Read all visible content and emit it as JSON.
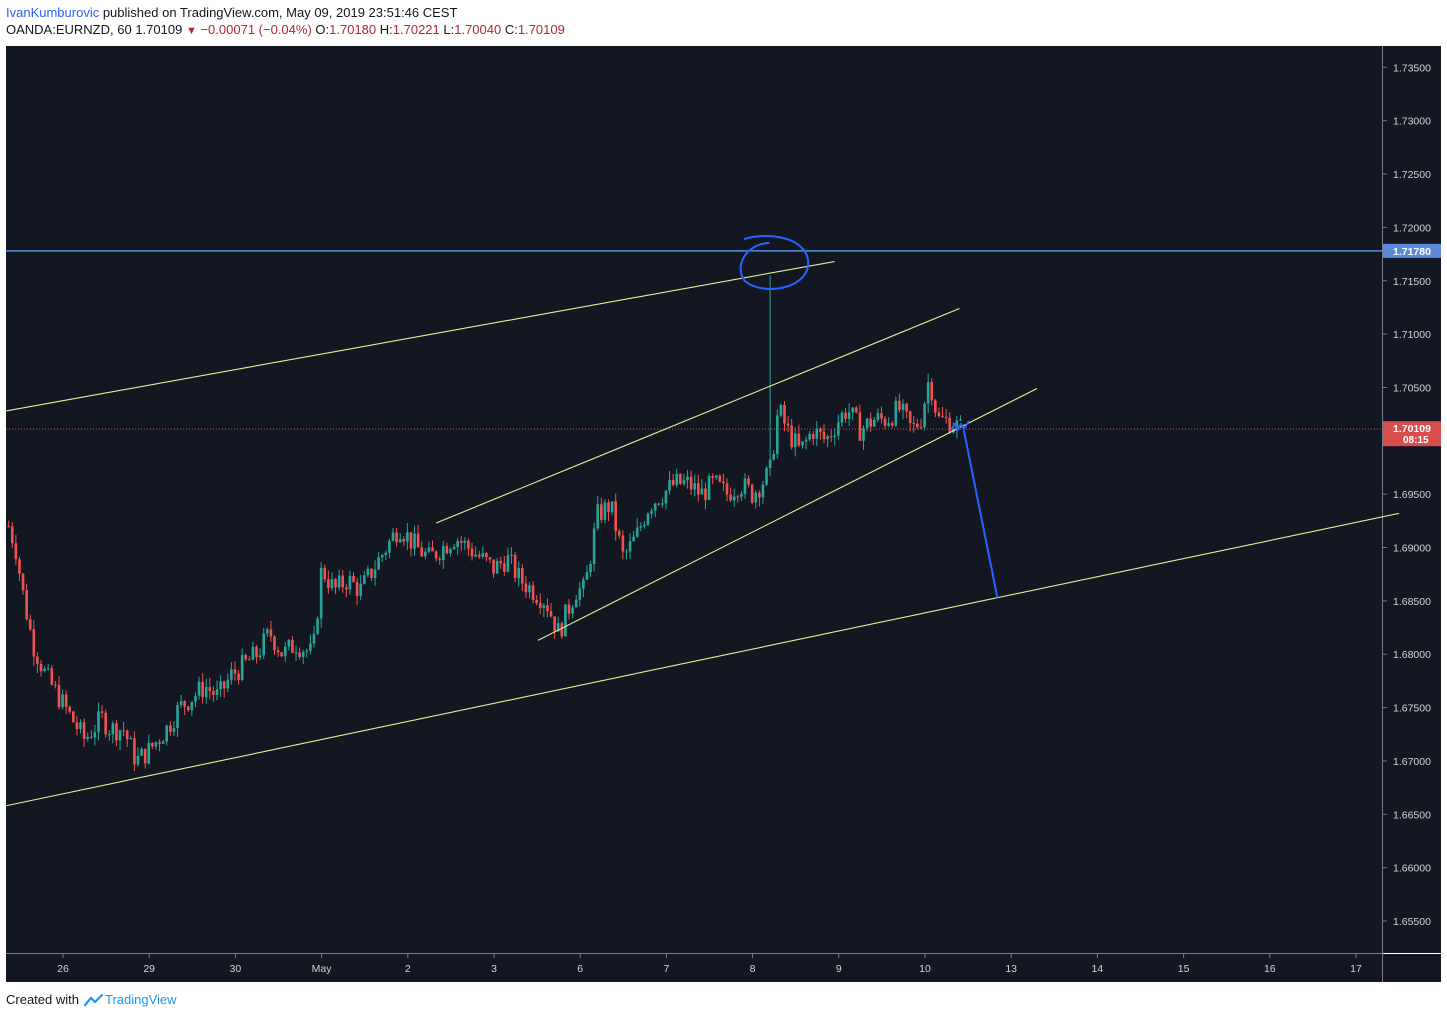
{
  "header": {
    "author": "IvanKumburovic",
    "published_text": " published on TradingView.com, May 09, 2019 23:51:46 CEST",
    "symbol": "OANDA:EURNZD, 60",
    "last": "1.70109",
    "change": "−0.00071 (−0.04%)",
    "o_label": "O:",
    "o_value": "1.70180",
    "h_label": "H:",
    "h_value": "1.70221",
    "l_label": "L:",
    "l_value": "1.70040",
    "c_label": "C:",
    "c_value": "1.70109"
  },
  "footer": {
    "created_with": "Created with",
    "brand": "TradingView"
  },
  "colors": {
    "background": "#131722",
    "up": "#26a69a",
    "down": "#ef5350",
    "trendline": "#e6ee9c",
    "drawing": "#2962ff",
    "resistance": "#5b8bd8",
    "last_price": "#d84d4d"
  },
  "chart_data": {
    "type": "candlestick",
    "symbol": "OANDA:EURNZD",
    "interval": "60",
    "ylim": [
      1.652,
      1.737
    ],
    "yticks": [
      "1.73500",
      "1.73000",
      "1.72500",
      "1.72000",
      "1.71500",
      "1.71000",
      "1.70500",
      "1.70000",
      "1.69500",
      "1.69000",
      "1.68500",
      "1.68000",
      "1.67500",
      "1.67000",
      "1.66500",
      "1.66000",
      "1.65500"
    ],
    "xticks": [
      {
        "label": "26",
        "t": 0
      },
      {
        "label": "29",
        "t": 1
      },
      {
        "label": "30",
        "t": 2
      },
      {
        "label": "May",
        "t": 3
      },
      {
        "label": "2",
        "t": 4
      },
      {
        "label": "3",
        "t": 5
      },
      {
        "label": "6",
        "t": 6
      },
      {
        "label": "7",
        "t": 7
      },
      {
        "label": "8",
        "t": 8
      },
      {
        "label": "9",
        "t": 9
      },
      {
        "label": "10",
        "t": 10
      },
      {
        "label": "13",
        "t": 11
      },
      {
        "label": "14",
        "t": 12
      },
      {
        "label": "15",
        "t": 13
      },
      {
        "label": "16",
        "t": 14
      },
      {
        "label": "17",
        "t": 15
      }
    ],
    "close_path": [
      [
        -0.63,
        1.692
      ],
      [
        -0.55,
        1.69
      ],
      [
        -0.45,
        1.685
      ],
      [
        -0.35,
        1.681
      ],
      [
        -0.2,
        1.678
      ],
      [
        -0.05,
        1.676
      ],
      [
        0.1,
        1.674
      ],
      [
        0.25,
        1.672
      ],
      [
        0.35,
        1.673
      ],
      [
        0.45,
        1.674
      ],
      [
        0.55,
        1.673
      ],
      [
        0.7,
        1.673
      ],
      [
        0.85,
        1.67
      ],
      [
        1.0,
        1.671
      ],
      [
        1.2,
        1.673
      ],
      [
        1.35,
        1.675
      ],
      [
        1.5,
        1.676
      ],
      [
        1.65,
        1.677
      ],
      [
        1.8,
        1.676
      ],
      [
        1.95,
        1.678
      ],
      [
        2.1,
        1.679
      ],
      [
        2.25,
        1.68
      ],
      [
        2.4,
        1.682
      ],
      [
        2.55,
        1.68
      ],
      [
        2.7,
        1.681
      ],
      [
        2.9,
        1.68
      ],
      [
        3.0,
        1.688
      ],
      [
        3.15,
        1.686
      ],
      [
        3.3,
        1.687
      ],
      [
        3.45,
        1.686
      ],
      [
        3.6,
        1.688
      ],
      [
        3.75,
        1.69
      ],
      [
        3.9,
        1.692
      ],
      [
        4.0,
        1.691
      ],
      [
        4.1,
        1.69
      ],
      [
        4.25,
        1.689
      ],
      [
        4.4,
        1.69
      ],
      [
        4.55,
        1.691
      ],
      [
        4.7,
        1.69
      ],
      [
        4.85,
        1.689
      ],
      [
        5.0,
        1.688
      ],
      [
        5.15,
        1.689
      ],
      [
        5.3,
        1.687
      ],
      [
        5.45,
        1.686
      ],
      [
        5.6,
        1.685
      ],
      [
        5.75,
        1.682
      ],
      [
        5.85,
        1.684
      ],
      [
        5.95,
        1.686
      ],
      [
        6.05,
        1.686
      ],
      [
        6.2,
        1.693
      ],
      [
        6.35,
        1.694
      ],
      [
        6.5,
        1.689
      ],
      [
        6.65,
        1.691
      ],
      [
        6.8,
        1.694
      ],
      [
        6.95,
        1.695
      ],
      [
        7.1,
        1.696
      ],
      [
        7.25,
        1.696
      ],
      [
        7.4,
        1.695
      ],
      [
        7.55,
        1.696
      ],
      [
        7.7,
        1.695
      ],
      [
        7.85,
        1.696
      ],
      [
        8.0,
        1.695
      ],
      [
        8.1,
        1.696
      ],
      [
        8.2,
        1.697
      ],
      [
        8.3,
        1.703
      ],
      [
        8.4,
        1.701
      ],
      [
        8.55,
        1.699
      ],
      [
        8.7,
        1.701
      ],
      [
        8.85,
        1.7
      ],
      [
        9.0,
        1.702
      ],
      [
        9.1,
        1.703
      ],
      [
        9.25,
        1.701
      ],
      [
        9.4,
        1.702
      ],
      [
        9.55,
        1.702
      ],
      [
        9.7,
        1.703
      ],
      [
        9.85,
        1.701
      ],
      [
        9.95,
        1.702
      ],
      [
        10.05,
        1.706
      ],
      [
        10.15,
        1.702
      ],
      [
        10.3,
        1.7018
      ],
      [
        10.4,
        1.7012
      ],
      [
        10.45,
        1.70109
      ]
    ],
    "spike": {
      "t": 8.2,
      "high": 1.7155
    },
    "resistance_level": "1.71780",
    "last_price": "1.70109",
    "countdown": "08:15",
    "trendlines": [
      {
        "t1": -0.66,
        "p1": 1.7028,
        "t2": 8.95,
        "p2": 1.7168
      },
      {
        "t1": 4.33,
        "p1": 1.6923,
        "t2": 10.4,
        "p2": 1.7124
      },
      {
        "t1": 5.51,
        "p1": 1.6813,
        "t2": 11.3,
        "p2": 1.7049
      },
      {
        "t1": -0.66,
        "p1": 1.6658,
        "t2": 15.5,
        "p2": 1.6932
      }
    ],
    "projection": [
      [
        10.45,
        1.701
      ],
      [
        10.84,
        1.6853
      ]
    ]
  }
}
